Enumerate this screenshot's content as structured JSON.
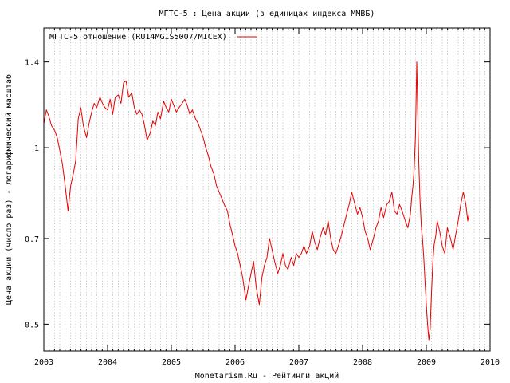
{
  "chart_data": {
    "type": "line",
    "title": "МГТС-5 : Цена акции (в единицах индекса ММВБ)",
    "xlabel": "Monetarism.Ru - Рейтинги акций",
    "ylabel": "Цена акции (число раз) - логарифмический масштаб",
    "y_scale": "log",
    "xlim": [
      2003.0,
      2010.0
    ],
    "ylim": [
      0.45,
      1.6
    ],
    "x_tick_labels": [
      "2003",
      "2004",
      "2005",
      "2006",
      "2007",
      "2008",
      "2009",
      "2010"
    ],
    "x_ticks": [
      2003,
      2004,
      2005,
      2006,
      2007,
      2008,
      2009,
      2010
    ],
    "y_tick_labels": [
      "0.5",
      "0.7",
      "1",
      "1.4"
    ],
    "y_ticks": [
      0.5,
      0.7,
      1.0,
      1.4
    ],
    "grid": true,
    "legend_position": "top-left",
    "series": [
      {
        "name": "МГТС-5 отношение (RU14MGIS5007/MICEX)",
        "color": "#e60000",
        "x": [
          2003.0,
          2003.04,
          2003.08,
          2003.12,
          2003.17,
          2003.21,
          2003.25,
          2003.29,
          2003.33,
          2003.38,
          2003.42,
          2003.46,
          2003.5,
          2003.54,
          2003.58,
          2003.62,
          2003.67,
          2003.71,
          2003.75,
          2003.79,
          2003.83,
          2003.88,
          2003.92,
          2003.96,
          2004.0,
          2004.04,
          2004.08,
          2004.12,
          2004.17,
          2004.21,
          2004.25,
          2004.29,
          2004.33,
          2004.38,
          2004.42,
          2004.46,
          2004.5,
          2004.54,
          2004.58,
          2004.62,
          2004.67,
          2004.71,
          2004.75,
          2004.79,
          2004.83,
          2004.88,
          2004.92,
          2004.96,
          2005.0,
          2005.04,
          2005.08,
          2005.12,
          2005.17,
          2005.21,
          2005.25,
          2005.29,
          2005.33,
          2005.38,
          2005.42,
          2005.46,
          2005.5,
          2005.54,
          2005.58,
          2005.62,
          2005.67,
          2005.71,
          2005.75,
          2005.79,
          2005.83,
          2005.88,
          2005.92,
          2005.96,
          2006.0,
          2006.04,
          2006.08,
          2006.12,
          2006.17,
          2006.21,
          2006.25,
          2006.29,
          2006.33,
          2006.38,
          2006.42,
          2006.46,
          2006.5,
          2006.54,
          2006.58,
          2006.62,
          2006.67,
          2006.71,
          2006.75,
          2006.79,
          2006.83,
          2006.88,
          2006.92,
          2006.96,
          2007.0,
          2007.04,
          2007.08,
          2007.12,
          2007.17,
          2007.21,
          2007.25,
          2007.29,
          2007.33,
          2007.38,
          2007.42,
          2007.46,
          2007.5,
          2007.54,
          2007.58,
          2007.62,
          2007.67,
          2007.71,
          2007.75,
          2007.79,
          2007.83,
          2007.88,
          2007.92,
          2007.96,
          2008.0,
          2008.04,
          2008.08,
          2008.12,
          2008.17,
          2008.21,
          2008.25,
          2008.29,
          2008.33,
          2008.38,
          2008.42,
          2008.46,
          2008.5,
          2008.54,
          2008.58,
          2008.62,
          2008.67,
          2008.71,
          2008.75,
          2008.77,
          2008.79,
          2008.81,
          2008.83,
          2008.85,
          2008.88,
          2008.9,
          2008.92,
          2008.94,
          2008.96,
          2008.98,
          2009.0,
          2009.02,
          2009.04,
          2009.06,
          2009.08,
          2009.1,
          2009.12,
          2009.15,
          2009.17,
          2009.21,
          2009.25,
          2009.29,
          2009.33,
          2009.38,
          2009.42,
          2009.46,
          2009.5,
          2009.54,
          2009.58,
          2009.62,
          2009.65,
          2009.67
        ],
        "values": [
          1.1,
          1.16,
          1.13,
          1.09,
          1.07,
          1.04,
          0.99,
          0.94,
          0.87,
          0.78,
          0.86,
          0.9,
          0.95,
          1.12,
          1.17,
          1.09,
          1.04,
          1.1,
          1.15,
          1.19,
          1.17,
          1.22,
          1.19,
          1.17,
          1.16,
          1.21,
          1.14,
          1.22,
          1.23,
          1.19,
          1.29,
          1.3,
          1.22,
          1.24,
          1.17,
          1.14,
          1.16,
          1.14,
          1.09,
          1.03,
          1.06,
          1.11,
          1.09,
          1.15,
          1.12,
          1.2,
          1.17,
          1.15,
          1.21,
          1.18,
          1.15,
          1.17,
          1.19,
          1.21,
          1.18,
          1.14,
          1.16,
          1.12,
          1.1,
          1.07,
          1.04,
          1.0,
          0.97,
          0.93,
          0.9,
          0.86,
          0.84,
          0.82,
          0.8,
          0.78,
          0.74,
          0.71,
          0.68,
          0.66,
          0.63,
          0.6,
          0.55,
          0.58,
          0.61,
          0.64,
          0.58,
          0.54,
          0.6,
          0.63,
          0.65,
          0.7,
          0.67,
          0.64,
          0.61,
          0.63,
          0.66,
          0.63,
          0.62,
          0.65,
          0.63,
          0.66,
          0.65,
          0.66,
          0.68,
          0.66,
          0.68,
          0.72,
          0.69,
          0.67,
          0.7,
          0.73,
          0.71,
          0.75,
          0.7,
          0.67,
          0.66,
          0.68,
          0.71,
          0.74,
          0.77,
          0.8,
          0.84,
          0.8,
          0.77,
          0.79,
          0.76,
          0.72,
          0.7,
          0.67,
          0.7,
          0.73,
          0.75,
          0.79,
          0.76,
          0.8,
          0.81,
          0.84,
          0.78,
          0.77,
          0.8,
          0.78,
          0.75,
          0.73,
          0.77,
          0.82,
          0.86,
          0.92,
          1.05,
          1.4,
          0.96,
          0.82,
          0.74,
          0.7,
          0.65,
          0.59,
          0.54,
          0.5,
          0.47,
          0.49,
          0.56,
          0.63,
          0.68,
          0.71,
          0.75,
          0.72,
          0.68,
          0.66,
          0.73,
          0.7,
          0.67,
          0.71,
          0.75,
          0.8,
          0.84,
          0.8,
          0.75,
          0.77
        ]
      }
    ]
  }
}
